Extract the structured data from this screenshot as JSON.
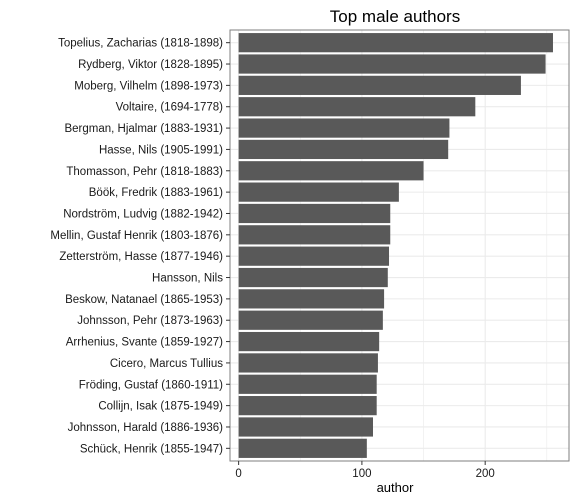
{
  "chart_data": {
    "type": "bar",
    "orientation": "horizontal",
    "title": "Top male authors",
    "xlabel": "author",
    "ylabel": "",
    "xlim": [
      -7,
      268
    ],
    "xticks": [
      0,
      100,
      200
    ],
    "grid": true,
    "legend": "none",
    "colors": {
      "bar": "#595959",
      "panel_border": "#7f7f7f",
      "grid": "#ebebeb"
    },
    "categories": [
      "Topelius, Zacharias (1818-1898)",
      "Rydberg, Viktor (1828-1895)",
      "Moberg, Vilhelm (1898-1973)",
      "Voltaire,  (1694-1778)",
      "Bergman, Hjalmar (1883-1931)",
      "Hasse, Nils (1905-1991)",
      "Thomasson, Pehr (1818-1883)",
      "Böök, Fredrik (1883-1961)",
      "Nordström, Ludvig (1882-1942)",
      "Mellin, Gustaf Henrik (1803-1876)",
      "Zetterström, Hasse (1877-1946)",
      "Hansson, Nils",
      "Beskow, Natanael (1865-1953)",
      "Johnsson, Pehr (1873-1963)",
      "Arrhenius, Svante (1859-1927)",
      "Cicero, Marcus Tullius",
      "Fröding, Gustaf (1860-1911)",
      "Collijn, Isak (1875-1949)",
      "Johnsson, Harald (1886-1936)",
      "Schück, Henrik (1855-1947)"
    ],
    "values": [
      255,
      249,
      229,
      192,
      171,
      170,
      150,
      130,
      123,
      123,
      122,
      121,
      118,
      117,
      114,
      113,
      112,
      112,
      109,
      104
    ]
  }
}
